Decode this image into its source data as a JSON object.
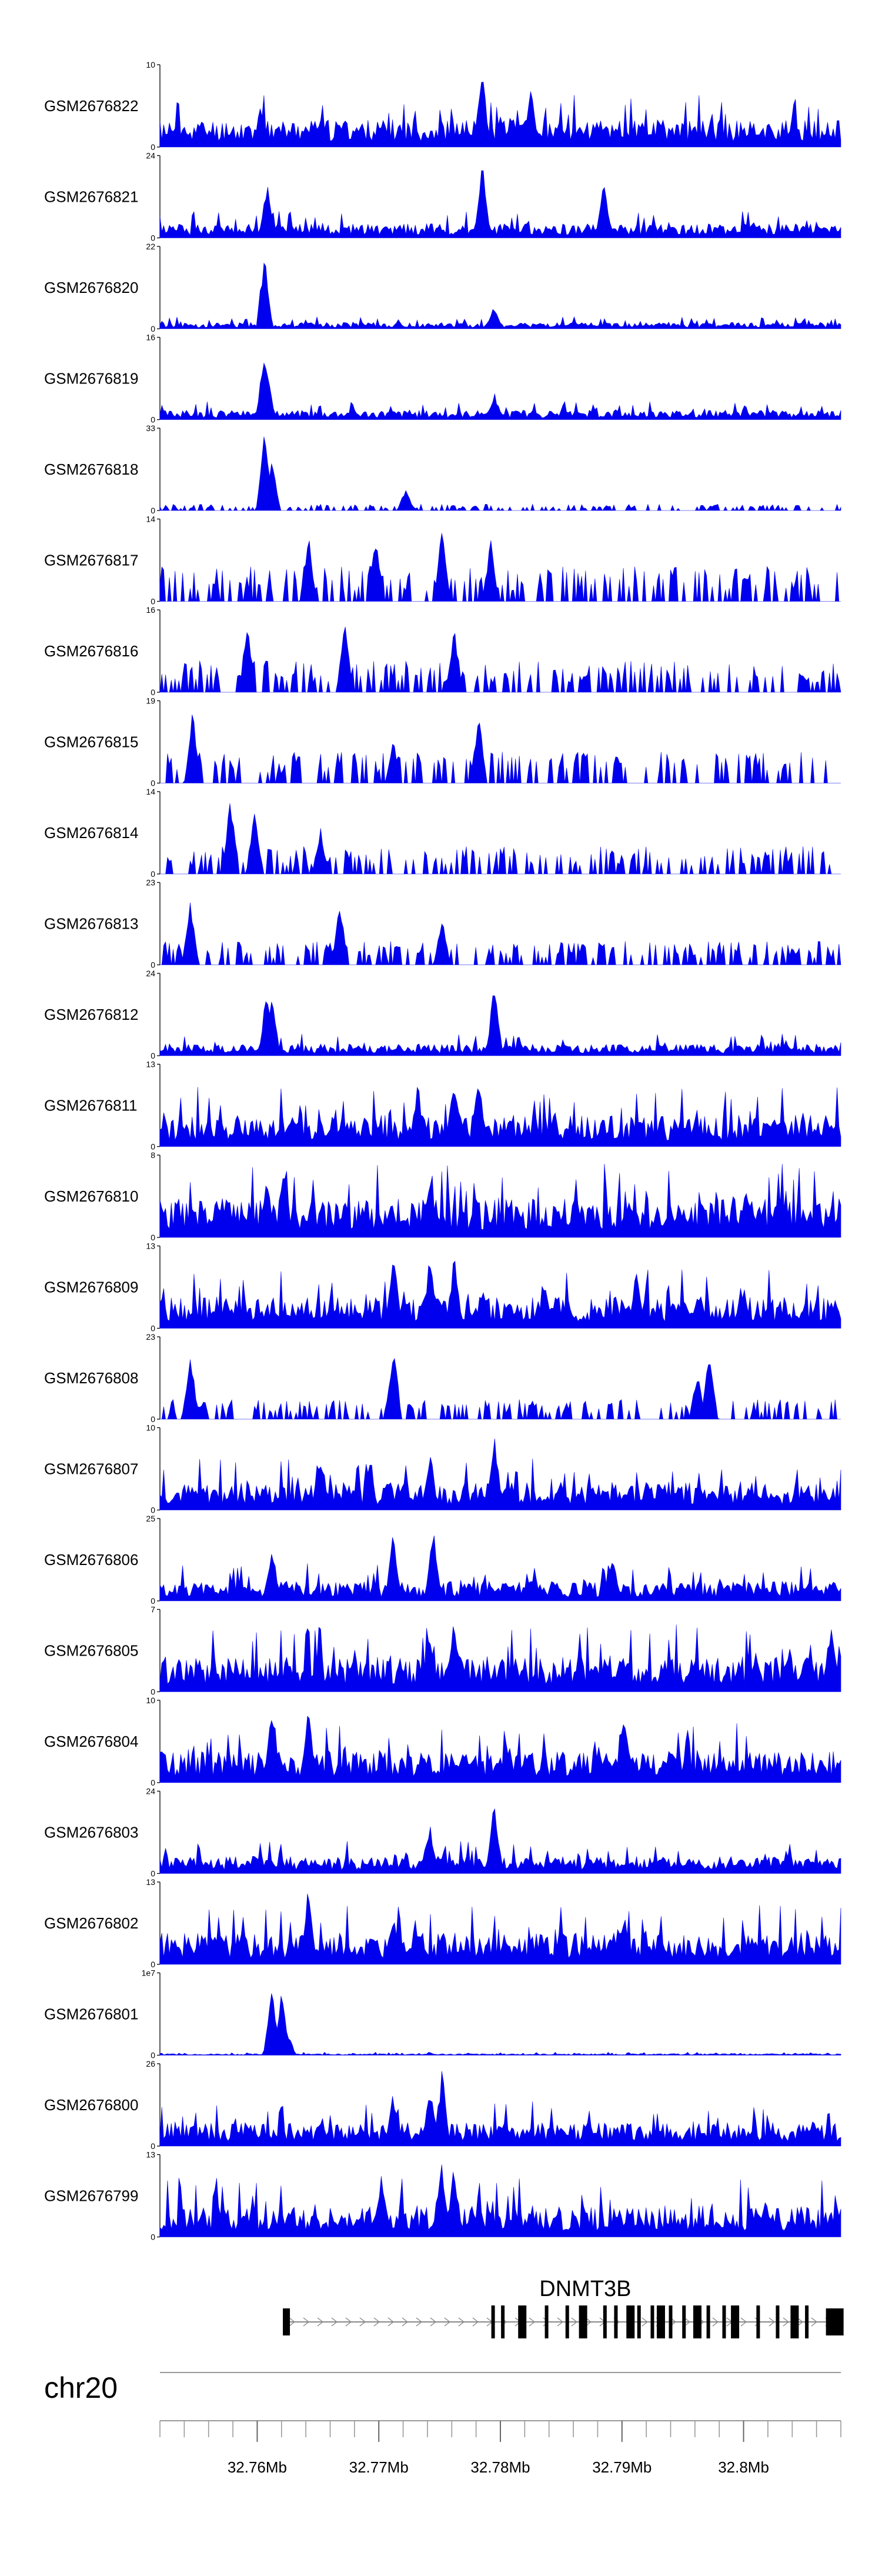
{
  "chart_data": {
    "type": "area",
    "genome_region": {
      "chrom": "chr20",
      "start_mb": 32.752,
      "end_mb": 32.808
    },
    "color": "#0000ee",
    "tracks": [
      {
        "name": "GSM2676822",
        "ymax": "10",
        "ymin": "0",
        "seed": 11,
        "peaks": [
          [
            32.7785,
            1.0
          ],
          [
            32.7825,
            0.8
          ],
          [
            32.7603,
            0.55
          ]
        ],
        "bg": 0.35,
        "gappy": false
      },
      {
        "name": "GSM2676821",
        "ymax": "24",
        "ymin": "0",
        "seed": 12,
        "peaks": [
          [
            32.7785,
            1.0
          ],
          [
            32.7885,
            0.75
          ],
          [
            32.7608,
            0.72
          ]
        ],
        "bg": 0.18,
        "gappy": false
      },
      {
        "name": "GSM2676820",
        "ymax": "22",
        "ymin": "0",
        "seed": 13,
        "peaks": [
          [
            32.7606,
            1.0
          ],
          [
            32.7795,
            0.3
          ]
        ],
        "bg": 0.08,
        "gappy": false
      },
      {
        "name": "GSM2676819",
        "ymax": "16",
        "ymin": "0",
        "seed": 14,
        "peaks": [
          [
            32.7606,
            0.95
          ],
          [
            32.7608,
            0.7
          ],
          [
            32.7795,
            0.35
          ]
        ],
        "bg": 0.12,
        "gappy": false
      },
      {
        "name": "GSM2676818",
        "ymax": "33",
        "ymin": "0",
        "seed": 15,
        "peaks": [
          [
            32.7606,
            1.0
          ],
          [
            32.7612,
            0.7
          ],
          [
            32.7722,
            0.3
          ]
        ],
        "bg": 0.08,
        "gappy": true
      },
      {
        "name": "GSM2676817",
        "ymax": "14",
        "ymin": "0",
        "seed": 16,
        "peaks": [
          [
            32.7642,
            0.9
          ],
          [
            32.7697,
            0.9
          ],
          [
            32.7752,
            0.95
          ],
          [
            32.7792,
            0.8
          ]
        ],
        "bg": 0.45,
        "gappy": true
      },
      {
        "name": "GSM2676816",
        "ymax": "16",
        "ymin": "0",
        "seed": 17,
        "peaks": [
          [
            32.7592,
            0.95
          ],
          [
            32.7672,
            0.9
          ],
          [
            32.7762,
            0.9
          ]
        ],
        "bg": 0.4,
        "gappy": true
      },
      {
        "name": "GSM2676815",
        "ymax": "19",
        "ymin": "0",
        "seed": 18,
        "peaks": [
          [
            32.7547,
            0.95
          ],
          [
            32.7782,
            0.95
          ],
          [
            32.7712,
            0.6
          ]
        ],
        "bg": 0.4,
        "gappy": true
      },
      {
        "name": "GSM2676814",
        "ymax": "14",
        "ymin": "0",
        "seed": 19,
        "peaks": [
          [
            32.7578,
            1.0
          ],
          [
            32.7598,
            0.9
          ],
          [
            32.7652,
            0.6
          ]
        ],
        "bg": 0.35,
        "gappy": true
      },
      {
        "name": "GSM2676813",
        "ymax": "23",
        "ymin": "0",
        "seed": 20,
        "peaks": [
          [
            32.7545,
            0.9
          ],
          [
            32.7668,
            0.9
          ],
          [
            32.7752,
            0.6
          ]
        ],
        "bg": 0.3,
        "gappy": true
      },
      {
        "name": "GSM2676812",
        "ymax": "24",
        "ymin": "0",
        "seed": 21,
        "peaks": [
          [
            32.7608,
            0.95
          ],
          [
            32.7612,
            0.8
          ],
          [
            32.7795,
            0.95
          ]
        ],
        "bg": 0.15,
        "gappy": false
      },
      {
        "name": "GSM2676811",
        "ymax": "13",
        "ymin": "0",
        "seed": 22,
        "peaks": [
          [
            32.7762,
            0.95
          ],
          [
            32.7782,
            0.95
          ],
          [
            32.7732,
            0.85
          ]
        ],
        "bg": 0.4,
        "gappy": false
      },
      {
        "name": "GSM2676810",
        "ymax": "8",
        "ymin": "0",
        "seed": 23,
        "peaks": [
          [
            32.7622,
            1.0
          ],
          [
            32.7742,
            0.85
          ],
          [
            32.7608,
            0.8
          ]
        ],
        "bg": 0.5,
        "gappy": false
      },
      {
        "name": "GSM2676809",
        "ymax": "13",
        "ymin": "0",
        "seed": 24,
        "peaks": [
          [
            32.7712,
            1.0
          ],
          [
            32.7742,
            0.95
          ],
          [
            32.7762,
            0.95
          ],
          [
            32.7912,
            0.8
          ]
        ],
        "bg": 0.4,
        "gappy": false
      },
      {
        "name": "GSM2676808",
        "ymax": "23",
        "ymin": "0",
        "seed": 25,
        "peaks": [
          [
            32.7545,
            0.9
          ],
          [
            32.7712,
            1.0
          ],
          [
            32.7972,
            0.95
          ],
          [
            32.7962,
            0.6
          ]
        ],
        "bg": 0.25,
        "gappy": true
      },
      {
        "name": "GSM2676807",
        "ymax": "10",
        "ymin": "0",
        "seed": 26,
        "peaks": [
          [
            32.7795,
            1.0
          ],
          [
            32.7742,
            0.8
          ],
          [
            32.7652,
            0.7
          ]
        ],
        "bg": 0.35,
        "gappy": false
      },
      {
        "name": "GSM2676806",
        "ymax": "25",
        "ymin": "0",
        "seed": 27,
        "peaks": [
          [
            32.7745,
            1.0
          ],
          [
            32.7712,
            0.9
          ],
          [
            32.7612,
            0.75
          ],
          [
            32.7892,
            0.65
          ]
        ],
        "bg": 0.25,
        "gappy": false
      },
      {
        "name": "GSM2676805",
        "ymax": "7",
        "ymin": "0",
        "seed": 28,
        "peaks": [
          [
            32.7762,
            1.0
          ],
          [
            32.7742,
            0.85
          ],
          [
            32.8072,
            0.95
          ]
        ],
        "bg": 0.45,
        "gappy": false
      },
      {
        "name": "GSM2676804",
        "ymax": "10",
        "ymin": "0",
        "seed": 29,
        "peaks": [
          [
            32.7612,
            1.0
          ],
          [
            32.7642,
            0.95
          ],
          [
            32.7902,
            0.95
          ]
        ],
        "bg": 0.4,
        "gappy": false
      },
      {
        "name": "GSM2676803",
        "ymax": "24",
        "ymin": "0",
        "seed": 30,
        "peaks": [
          [
            32.7795,
            1.0
          ],
          [
            32.7742,
            0.65
          ]
        ],
        "bg": 0.22,
        "gappy": false
      },
      {
        "name": "GSM2676802",
        "ymax": "13",
        "ymin": "0",
        "seed": 31,
        "peaks": [
          [
            32.7642,
            1.0
          ],
          [
            32.7712,
            0.7
          ],
          [
            32.7902,
            0.65
          ]
        ],
        "bg": 0.4,
        "gappy": false
      },
      {
        "name": "GSM2676801",
        "ymax": "1e7",
        "ymin": "0",
        "seed": 32,
        "peaks": [
          [
            32.7612,
            1.0
          ],
          [
            32.762,
            0.9
          ],
          [
            32.7625,
            0.3
          ]
        ],
        "bg": 0.02,
        "gappy": false
      },
      {
        "name": "GSM2676800",
        "ymax": "26",
        "ymin": "0",
        "seed": 33,
        "peaks": [
          [
            32.7752,
            1.0
          ],
          [
            32.7742,
            0.8
          ],
          [
            32.7712,
            0.7
          ]
        ],
        "bg": 0.3,
        "gappy": false
      },
      {
        "name": "GSM2676799",
        "ymax": "13",
        "ymin": "0",
        "seed": 34,
        "peaks": [
          [
            32.7752,
            1.0
          ],
          [
            32.7762,
            0.95
          ],
          [
            32.7702,
            0.85
          ]
        ],
        "bg": 0.4,
        "gappy": false
      }
    ],
    "gene": {
      "name": "DNMT3B",
      "strand": "+",
      "start_mb": 32.7622,
      "end_mb": 32.8079,
      "exons_mb": [
        32.7624,
        32.7794,
        32.7802,
        32.7818,
        32.7838,
        32.7855,
        32.7868,
        32.7886,
        32.7895,
        32.7907,
        32.7914,
        32.7925,
        32.7932,
        32.794,
        32.7951,
        32.7962,
        32.7971,
        32.7984,
        32.7993,
        32.8012,
        32.8028,
        32.8042,
        32.8052,
        32.8075
      ]
    },
    "axis": {
      "chrom_label": "chr20",
      "tick_labels": [
        {
          "pos_mb": 32.76,
          "label": "32.76Mb"
        },
        {
          "pos_mb": 32.77,
          "label": "32.77Mb"
        },
        {
          "pos_mb": 32.78,
          "label": "32.78Mb"
        },
        {
          "pos_mb": 32.79,
          "label": "32.79Mb"
        },
        {
          "pos_mb": 32.8,
          "label": "32.8Mb"
        }
      ],
      "minor_tick_step_mb": 0.002
    }
  }
}
